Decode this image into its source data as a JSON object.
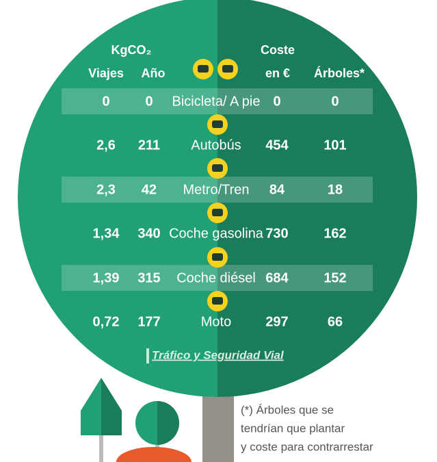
{
  "header": {
    "kg_label": "KgCO₂",
    "columns": [
      "Viajes",
      "Año",
      "Coste",
      "en €",
      "Árboles*"
    ]
  },
  "table": {
    "rows": [
      [
        "0",
        "0",
        "Bicicleta/ A pie",
        "0",
        "0"
      ],
      [
        "2,6",
        "211",
        "Autobús",
        "454",
        "101"
      ],
      [
        "2,3",
        "42",
        "Metro/Tren",
        "84",
        "18"
      ],
      [
        "1,34",
        "340",
        "Coche gasolina",
        "730",
        "162"
      ],
      [
        "1,39",
        "315",
        "Coche diésel",
        "684",
        "152"
      ],
      [
        "0,72",
        "177",
        "Moto",
        "297",
        "66"
      ]
    ]
  },
  "source": "Tráfico y Seguridad Vial",
  "footnote": [
    "(*) Árboles que se",
    "tendrían que plantar",
    "y coste para contrarrestar"
  ]
}
